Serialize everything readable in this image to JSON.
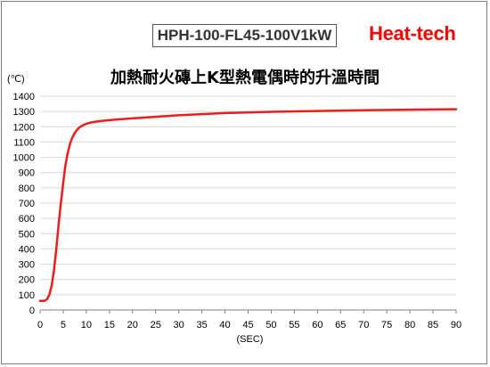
{
  "header": {
    "model": "HPH-100-FL45-100V1kW",
    "brand": "Heat-tech"
  },
  "colors": {
    "brand": "#ff0000",
    "series": "#ee1c1c",
    "grid": "#d9d9d9"
  },
  "chart_data": {
    "type": "line",
    "title": "加熱耐火磚上K型熱電偶時的升溫時間",
    "xlabel": "(SEC)",
    "ylabel": "(℃)",
    "xlim": [
      0,
      90
    ],
    "ylim": [
      0,
      1400
    ],
    "xticks": [
      0,
      5,
      10,
      15,
      20,
      25,
      30,
      35,
      40,
      45,
      50,
      55,
      60,
      65,
      70,
      75,
      80,
      85,
      90
    ],
    "yticks": [
      0,
      100,
      200,
      300,
      400,
      500,
      600,
      700,
      800,
      900,
      1000,
      1100,
      1200,
      1300,
      1400
    ],
    "grid": "horizontal",
    "series": [
      {
        "x": [
          0,
          1,
          1.5,
          2,
          2.5,
          3,
          3.5,
          4,
          4.5,
          5,
          5.5,
          6,
          6.5,
          7,
          7.5,
          8,
          8.5,
          9,
          10,
          11,
          12,
          14,
          16,
          20,
          25,
          30,
          35,
          40,
          45,
          50,
          60,
          70,
          80,
          90
        ],
        "y": [
          60,
          60,
          70,
          100,
          160,
          260,
          400,
          560,
          700,
          830,
          950,
          1030,
          1090,
          1130,
          1160,
          1180,
          1195,
          1205,
          1220,
          1228,
          1233,
          1240,
          1246,
          1255,
          1265,
          1275,
          1283,
          1290,
          1294,
          1298,
          1303,
          1308,
          1312,
          1315
        ]
      }
    ]
  }
}
